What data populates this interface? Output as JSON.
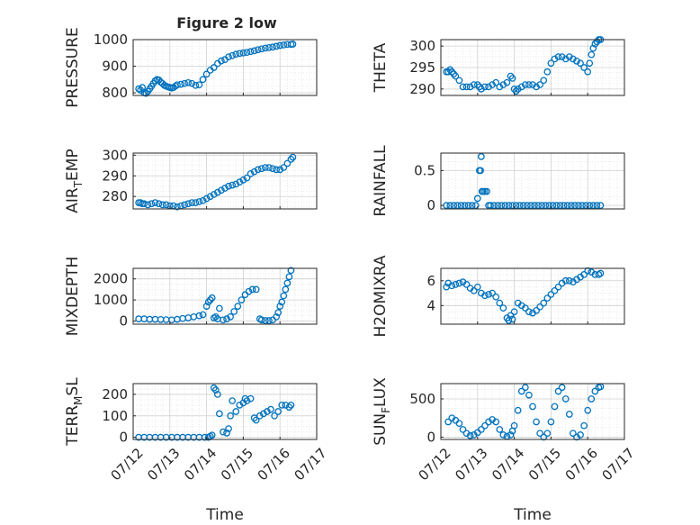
{
  "figure": {
    "title": "Figure 2 low"
  },
  "colors": {
    "marker": "#0072BD",
    "axis": "#262626",
    "grid": "#d0d0d0",
    "minor_grid": "#e6e6e6",
    "background": "#ffffff"
  },
  "chart_data": [
    {
      "type": "scatter",
      "id": "pressure",
      "ylabel": "PRESSURE",
      "ylabel_main": "PRESSURE",
      "ylabel_sub": "",
      "ylabel_tail": "",
      "title": "Figure 2 low",
      "xlim": [
        0,
        5
      ],
      "ylim": [
        790,
        1000
      ],
      "yticks": [
        800,
        900,
        1000
      ],
      "ytick_labels": [
        "800",
        "900",
        "1000"
      ],
      "xtick_labels": [
        "07/12",
        "07/13",
        "07/14",
        "07/15",
        "07/16",
        "07/17"
      ],
      "show_xticklabels": false,
      "xlabel": "",
      "grid": true,
      "minor_grid": true,
      "x": [
        0.15,
        0.2,
        0.25,
        0.3,
        0.35,
        0.4,
        0.45,
        0.5,
        0.55,
        0.6,
        0.65,
        0.7,
        0.75,
        0.8,
        0.85,
        0.9,
        0.95,
        1.0,
        1.05,
        1.1,
        1.15,
        1.2,
        1.3,
        1.4,
        1.5,
        1.6,
        1.7,
        1.8,
        1.9,
        2.0,
        2.1,
        2.2,
        2.3,
        2.4,
        2.5,
        2.6,
        2.7,
        2.8,
        2.9,
        3.0,
        3.1,
        3.2,
        3.3,
        3.4,
        3.5,
        3.6,
        3.7,
        3.8,
        3.9,
        4.0,
        4.1,
        4.2,
        4.3,
        4.35
      ],
      "y": [
        815,
        810,
        820,
        800,
        798,
        805,
        815,
        825,
        835,
        845,
        850,
        848,
        840,
        835,
        828,
        825,
        822,
        820,
        818,
        820,
        825,
        830,
        832,
        835,
        838,
        835,
        828,
        830,
        850,
        870,
        885,
        895,
        910,
        920,
        925,
        935,
        940,
        945,
        948,
        950,
        952,
        955,
        958,
        962,
        965,
        968,
        970,
        972,
        975,
        978,
        980,
        982,
        982,
        983
      ]
    },
    {
      "type": "scatter",
      "id": "theta",
      "ylabel": "THETA",
      "ylabel_main": "THETA",
      "ylabel_sub": "",
      "ylabel_tail": "",
      "xlim": [
        0,
        5
      ],
      "ylim": [
        288.5,
        301.5
      ],
      "yticks": [
        290,
        295,
        300
      ],
      "ytick_labels": [
        "290",
        "295",
        "300"
      ],
      "xtick_labels": [
        "07/12",
        "07/13",
        "07/14",
        "07/15",
        "07/16",
        "07/17"
      ],
      "show_xticklabels": false,
      "xlabel": "",
      "grid": true,
      "minor_grid": true,
      "x": [
        0.15,
        0.2,
        0.25,
        0.3,
        0.35,
        0.4,
        0.5,
        0.6,
        0.7,
        0.8,
        0.9,
        1.0,
        1.05,
        1.1,
        1.2,
        1.3,
        1.4,
        1.5,
        1.6,
        1.7,
        1.8,
        1.9,
        1.95,
        2.0,
        2.05,
        2.1,
        2.2,
        2.3,
        2.4,
        2.5,
        2.6,
        2.7,
        2.8,
        2.9,
        3.0,
        3.1,
        3.2,
        3.3,
        3.4,
        3.5,
        3.6,
        3.7,
        3.8,
        3.9,
        4.0,
        4.05,
        4.1,
        4.15,
        4.2,
        4.25,
        4.3,
        4.35
      ],
      "y": [
        294,
        294,
        294.5,
        294,
        293.5,
        293,
        292,
        290.5,
        290.5,
        290.5,
        291,
        291,
        290.5,
        290,
        290.5,
        290.5,
        291,
        291.5,
        290.5,
        291,
        291.5,
        293,
        292.5,
        290,
        289.5,
        290,
        290.5,
        291,
        291,
        291,
        290.5,
        291,
        292,
        294,
        296,
        297,
        297.5,
        297.5,
        297,
        297.5,
        297,
        296.5,
        296,
        295,
        294,
        296,
        298,
        299.5,
        300.5,
        301,
        301.5,
        301.5
      ]
    },
    {
      "type": "scatter",
      "id": "air_temp",
      "ylabel": "AIR_TEMP",
      "ylabel_main": "AIR",
      "ylabel_sub": "T",
      "ylabel_tail": "EMP",
      "xlim": [
        0,
        5
      ],
      "ylim": [
        274,
        301
      ],
      "yticks": [
        280,
        290,
        300
      ],
      "ytick_labels": [
        "280",
        "290",
        "300"
      ],
      "xtick_labels": [
        "07/12",
        "07/13",
        "07/14",
        "07/15",
        "07/16",
        "07/17"
      ],
      "show_xticklabels": false,
      "xlabel": "",
      "grid": true,
      "minor_grid": true,
      "x": [
        0.15,
        0.2,
        0.25,
        0.3,
        0.4,
        0.5,
        0.6,
        0.7,
        0.8,
        0.9,
        1.0,
        1.1,
        1.2,
        1.3,
        1.4,
        1.5,
        1.6,
        1.7,
        1.8,
        1.9,
        2.0,
        2.1,
        2.2,
        2.3,
        2.4,
        2.5,
        2.6,
        2.7,
        2.8,
        2.9,
        3.0,
        3.1,
        3.2,
        3.3,
        3.4,
        3.5,
        3.6,
        3.7,
        3.8,
        3.9,
        4.0,
        4.1,
        4.2,
        4.3,
        4.35
      ],
      "y": [
        277,
        277,
        276.5,
        276.5,
        276,
        276.5,
        277,
        276.5,
        276,
        276,
        275.5,
        275.5,
        275,
        275.5,
        276,
        276.5,
        277,
        277,
        277.5,
        278,
        279,
        280,
        281,
        282,
        283,
        284,
        285,
        285.5,
        286,
        287,
        288,
        289,
        291,
        292,
        293,
        293.5,
        294,
        294,
        293.5,
        293,
        293,
        294,
        296,
        298,
        299
      ]
    },
    {
      "type": "scatter",
      "id": "rainfall",
      "ylabel": "RAINFALL",
      "ylabel_main": "RAINFALL",
      "ylabel_sub": "",
      "ylabel_tail": "",
      "xlim": [
        0,
        5
      ],
      "ylim": [
        -0.05,
        0.75
      ],
      "yticks": [
        0,
        0.5
      ],
      "ytick_labels": [
        "0",
        "0.5"
      ],
      "xtick_labels": [
        "07/12",
        "07/13",
        "07/14",
        "07/15",
        "07/16",
        "07/17"
      ],
      "show_xticklabels": false,
      "xlabel": "",
      "grid": true,
      "minor_grid": true,
      "x": [
        0.15,
        0.25,
        0.35,
        0.45,
        0.55,
        0.65,
        0.75,
        0.85,
        0.95,
        1.0,
        1.05,
        1.08,
        1.1,
        1.12,
        1.15,
        1.2,
        1.25,
        1.3,
        1.35,
        1.45,
        1.55,
        1.65,
        1.75,
        1.85,
        1.95,
        2.05,
        2.15,
        2.25,
        2.35,
        2.45,
        2.55,
        2.65,
        2.75,
        2.85,
        2.95,
        3.05,
        3.15,
        3.25,
        3.35,
        3.45,
        3.55,
        3.65,
        3.75,
        3.85,
        3.95,
        4.05,
        4.15,
        4.25,
        4.35
      ],
      "y": [
        0,
        0,
        0,
        0,
        0,
        0,
        0,
        0,
        0,
        0.1,
        0.5,
        0.5,
        0.7,
        0.2,
        0.2,
        0.2,
        0.2,
        0,
        0,
        0,
        0,
        0,
        0,
        0,
        0,
        0,
        0,
        0,
        0,
        0,
        0,
        0,
        0,
        0,
        0,
        0,
        0,
        0,
        0,
        0,
        0,
        0,
        0,
        0,
        0,
        0,
        0,
        0,
        0
      ]
    },
    {
      "type": "scatter",
      "id": "mixdepth",
      "ylabel": "MIXDEPTH",
      "ylabel_main": "MIXDEPTH",
      "ylabel_sub": "",
      "ylabel_tail": "",
      "xlim": [
        0,
        5
      ],
      "ylim": [
        -150,
        2500
      ],
      "yticks": [
        0,
        1000,
        2000
      ],
      "ytick_labels": [
        "0",
        "1000",
        "2000"
      ],
      "xtick_labels": [
        "07/12",
        "07/13",
        "07/14",
        "07/15",
        "07/16",
        "07/17"
      ],
      "show_xticklabels": false,
      "xlabel": "",
      "grid": true,
      "minor_grid": true,
      "x": [
        0.15,
        0.3,
        0.45,
        0.6,
        0.75,
        0.9,
        1.05,
        1.2,
        1.35,
        1.5,
        1.65,
        1.8,
        1.9,
        2.0,
        2.05,
        2.1,
        2.15,
        2.2,
        2.25,
        2.3,
        2.35,
        2.45,
        2.55,
        2.65,
        2.75,
        2.85,
        2.95,
        3.05,
        3.15,
        3.25,
        3.35,
        3.45,
        3.5,
        3.6,
        3.7,
        3.8,
        3.9,
        3.95,
        4.0,
        4.05,
        4.1,
        4.15,
        4.2,
        4.25,
        4.3
      ],
      "y": [
        100,
        100,
        80,
        80,
        70,
        60,
        50,
        80,
        120,
        150,
        200,
        250,
        300,
        700,
        900,
        1000,
        1100,
        150,
        200,
        100,
        600,
        50,
        100,
        200,
        450,
        700,
        1000,
        1250,
        1400,
        1500,
        1500,
        100,
        50,
        20,
        20,
        50,
        200,
        400,
        700,
        900,
        1200,
        1500,
        1800,
        2100,
        2400
      ]
    },
    {
      "type": "scatter",
      "id": "h2omixra",
      "ylabel": "H2OMIXRA",
      "ylabel_main": "H2OMIXRA",
      "ylabel_sub": "",
      "ylabel_tail": "",
      "xlim": [
        0,
        5
      ],
      "ylim": [
        2.5,
        7
      ],
      "yticks": [
        4,
        6
      ],
      "ytick_labels": [
        "4",
        "6"
      ],
      "xtick_labels": [
        "07/12",
        "07/13",
        "07/14",
        "07/15",
        "07/16",
        "07/17"
      ],
      "show_xticklabels": false,
      "xlabel": "",
      "grid": true,
      "minor_grid": true,
      "x": [
        0.15,
        0.2,
        0.3,
        0.4,
        0.5,
        0.6,
        0.7,
        0.8,
        0.9,
        1.0,
        1.1,
        1.2,
        1.3,
        1.4,
        1.5,
        1.6,
        1.7,
        1.8,
        1.85,
        1.9,
        1.95,
        2.0,
        2.1,
        2.2,
        2.3,
        2.4,
        2.5,
        2.6,
        2.7,
        2.8,
        2.9,
        3.0,
        3.1,
        3.2,
        3.3,
        3.4,
        3.5,
        3.6,
        3.7,
        3.8,
        3.9,
        4.0,
        4.1,
        4.2,
        4.3,
        4.35
      ],
      "y": [
        5.5,
        5.8,
        5.6,
        5.7,
        5.8,
        5.9,
        5.7,
        5.4,
        5.2,
        5.5,
        5.0,
        4.8,
        4.9,
        5.0,
        4.7,
        4.2,
        3.8,
        3.0,
        2.8,
        3.2,
        2.9,
        3.5,
        4.2,
        4.0,
        3.8,
        3.5,
        3.4,
        3.6,
        3.9,
        4.2,
        4.6,
        4.9,
        5.2,
        5.5,
        5.8,
        6.0,
        6.0,
        5.9,
        6.1,
        6.3,
        6.5,
        6.8,
        6.7,
        6.5,
        6.5,
        6.6
      ]
    },
    {
      "type": "scatter",
      "id": "terr_msl",
      "ylabel": "TERR_MSL",
      "ylabel_main": "TERR",
      "ylabel_sub": "M",
      "ylabel_tail": "SL",
      "xlim": [
        0,
        5
      ],
      "ylim": [
        -10,
        250
      ],
      "yticks": [
        0,
        100,
        200
      ],
      "ytick_labels": [
        "0",
        "100",
        "200"
      ],
      "xtick_labels": [
        "07/12",
        "07/13",
        "07/14",
        "07/15",
        "07/16",
        "07/17"
      ],
      "show_xticklabels": true,
      "xlabel": "Time",
      "grid": true,
      "minor_grid": true,
      "x": [
        0.15,
        0.3,
        0.45,
        0.6,
        0.75,
        0.9,
        1.05,
        1.2,
        1.35,
        1.5,
        1.65,
        1.8,
        1.95,
        2.05,
        2.1,
        2.15,
        2.2,
        2.25,
        2.3,
        2.35,
        2.45,
        2.55,
        2.6,
        2.65,
        2.7,
        2.8,
        2.9,
        3.0,
        3.05,
        3.1,
        3.2,
        3.3,
        3.35,
        3.45,
        3.55,
        3.65,
        3.75,
        3.85,
        3.95,
        4.05,
        4.15,
        4.25,
        4.3
      ],
      "y": [
        0,
        0,
        0,
        0,
        0,
        0,
        0,
        0,
        0,
        0,
        0,
        0,
        0,
        0,
        5,
        10,
        230,
        220,
        200,
        110,
        25,
        20,
        40,
        100,
        170,
        120,
        150,
        160,
        180,
        170,
        180,
        90,
        80,
        100,
        110,
        120,
        130,
        100,
        120,
        150,
        150,
        140,
        150
      ]
    },
    {
      "type": "scatter",
      "id": "sun_flux",
      "ylabel": "SUN_FLUX",
      "ylabel_main": "SUN",
      "ylabel_sub": "F",
      "ylabel_tail": "LUX",
      "xlim": [
        0,
        5
      ],
      "ylim": [
        -30,
        700
      ],
      "yticks": [
        0,
        500
      ],
      "ytick_labels": [
        "0",
        "500"
      ],
      "xtick_labels": [
        "07/12",
        "07/13",
        "07/14",
        "07/15",
        "07/16",
        "07/17"
      ],
      "show_xticklabels": true,
      "xlabel": "Time",
      "grid": true,
      "minor_grid": true,
      "x": [
        0.2,
        0.3,
        0.4,
        0.5,
        0.6,
        0.7,
        0.8,
        0.9,
        1.0,
        1.1,
        1.2,
        1.3,
        1.4,
        1.5,
        1.6,
        1.7,
        1.8,
        1.9,
        1.95,
        2.0,
        2.1,
        2.2,
        2.3,
        2.4,
        2.5,
        2.6,
        2.7,
        2.8,
        2.9,
        3.0,
        3.1,
        3.2,
        3.3,
        3.4,
        3.5,
        3.6,
        3.7,
        3.8,
        3.9,
        4.0,
        4.1,
        4.2,
        4.3,
        4.35
      ],
      "y": [
        200,
        250,
        220,
        180,
        100,
        50,
        20,
        30,
        60,
        100,
        150,
        200,
        230,
        200,
        100,
        30,
        10,
        30,
        80,
        150,
        350,
        600,
        650,
        550,
        400,
        200,
        50,
        0,
        50,
        200,
        400,
        600,
        650,
        500,
        300,
        50,
        0,
        30,
        150,
        350,
        500,
        600,
        650,
        660
      ]
    }
  ]
}
